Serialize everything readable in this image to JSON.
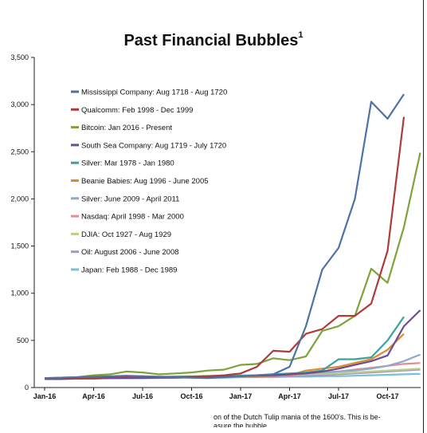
{
  "title": "Past Financial Bubbles",
  "title_superscript": "1",
  "footnote": {
    "line1": "on of the Dutch Tulip mania of the 1600's.  This is be-",
    "line2": "asure the bubble."
  },
  "chart_data": {
    "type": "line",
    "title": "Past Financial Bubbles",
    "xlabel": "",
    "ylabel": "",
    "x_tick_labels": [
      "Jan-16",
      "Apr-16",
      "Jul-16",
      "Oct-16",
      "Jan-17",
      "Apr-17",
      "Jul-17",
      "Oct-17"
    ],
    "y_tick_labels": [
      "0",
      "500",
      "1,000",
      "1,500",
      "2,000",
      "2,500",
      "3,000",
      "3,500"
    ],
    "ylim": [
      0,
      3500
    ],
    "xlim_months": [
      0,
      23.8
    ],
    "grid": false,
    "legend_position": "top-left",
    "x": [
      "Jan-16",
      "Feb-16",
      "Mar-16",
      "Apr-16",
      "May-16",
      "Jun-16",
      "Jul-16",
      "Aug-16",
      "Sep-16",
      "Oct-16",
      "Nov-16",
      "Dec-16",
      "Jan-17",
      "Feb-17",
      "Mar-17",
      "Apr-17",
      "May-17",
      "Jun-17",
      "Jul-17",
      "Aug-17",
      "Sep-17",
      "Oct-17",
      "Nov-17",
      "Dec-17"
    ],
    "series": [
      {
        "name": "Mississippi Company: Aug 1718 - Aug 1720",
        "color": "#4e72a6",
        "values": [
          100,
          105,
          110,
          115,
          120,
          125,
          120,
          115,
          110,
          105,
          100,
          110,
          120,
          130,
          140,
          220,
          650,
          1250,
          1480,
          2000,
          3030,
          2850,
          3110,
          null
        ]
      },
      {
        "name": "Qualcomm:  Feb 1998 - Dec 1999",
        "color": "#b03a3a",
        "values": [
          100,
          100,
          95,
          100,
          110,
          115,
          120,
          110,
          110,
          115,
          120,
          130,
          150,
          220,
          390,
          380,
          570,
          620,
          760,
          760,
          890,
          1450,
          2870,
          null
        ]
      },
      {
        "name": "Bitcoin: Jan 2016 - Present",
        "color": "#7ea33a",
        "values": [
          100,
          105,
          110,
          130,
          140,
          170,
          160,
          140,
          150,
          160,
          180,
          190,
          240,
          250,
          310,
          290,
          330,
          600,
          650,
          760,
          1260,
          1110,
          1700,
          2490
        ]
      },
      {
        "name": "South Sea Company: Aug 1719 - July 1720",
        "color": "#6b4d8f",
        "values": [
          90,
          90,
          95,
          95,
          100,
          100,
          100,
          105,
          105,
          110,
          110,
          115,
          120,
          125,
          130,
          140,
          150,
          170,
          200,
          240,
          280,
          340,
          650,
          820
        ]
      },
      {
        "name": "Silver: Mar 1978 - Jan 1980",
        "color": "#3aa0a0",
        "values": [
          100,
          100,
          100,
          105,
          105,
          110,
          110,
          110,
          115,
          115,
          120,
          120,
          125,
          130,
          140,
          150,
          160,
          180,
          300,
          300,
          320,
          500,
          750,
          null
        ]
      },
      {
        "name": "Beanie Babies: Aug 1996 - June 2005",
        "color": "#e08a2a",
        "values": [
          100,
          100,
          100,
          100,
          100,
          105,
          105,
          105,
          110,
          110,
          110,
          115,
          120,
          120,
          125,
          130,
          180,
          200,
          220,
          260,
          300,
          400,
          570,
          null
        ]
      },
      {
        "name": "Silver: June 2009 - April 2011",
        "color": "#8fa8cc",
        "values": [
          100,
          100,
          100,
          100,
          100,
          105,
          105,
          105,
          110,
          110,
          110,
          115,
          120,
          125,
          130,
          140,
          150,
          160,
          170,
          180,
          200,
          230,
          280,
          350
        ]
      },
      {
        "name": "Nasdaq: April 1998 - Mar 2000",
        "color": "#e08f8f",
        "values": [
          100,
          100,
          100,
          100,
          105,
          105,
          105,
          110,
          110,
          110,
          115,
          115,
          120,
          120,
          125,
          130,
          150,
          160,
          170,
          190,
          210,
          230,
          250,
          260
        ]
      },
      {
        "name": "DJIA: Oct 1927 - Aug 1929",
        "color": "#b8d084",
        "values": [
          100,
          105,
          105,
          110,
          110,
          115,
          115,
          115,
          120,
          120,
          125,
          125,
          130,
          130,
          135,
          135,
          140,
          145,
          150,
          160,
          170,
          180,
          190,
          200
        ]
      },
      {
        "name": "Oil: August 2006 - June 2008",
        "color": "#a897c4",
        "values": [
          100,
          100,
          100,
          100,
          100,
          100,
          105,
          105,
          105,
          110,
          110,
          110,
          115,
          115,
          120,
          120,
          125,
          130,
          140,
          150,
          160,
          170,
          180,
          190
        ]
      },
      {
        "name": "Japan: Feb 1988 - Dec 1989",
        "color": "#7cbfd8",
        "values": [
          100,
          100,
          100,
          100,
          100,
          100,
          100,
          100,
          105,
          105,
          105,
          105,
          110,
          110,
          110,
          115,
          115,
          120,
          120,
          125,
          130,
          135,
          140,
          145
        ]
      }
    ]
  }
}
